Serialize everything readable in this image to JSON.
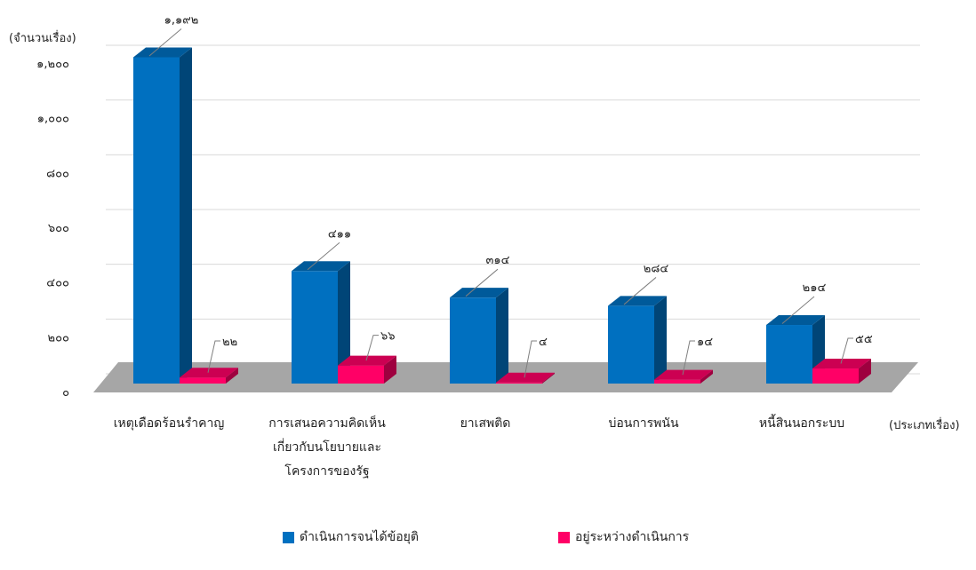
{
  "chart_data": {
    "type": "bar",
    "ylabel": "(จำนวนเรื่อง)",
    "xlabel": "(ประเภทเรื่อง)",
    "ylim": [
      0,
      1200
    ],
    "yticks": [
      "๐",
      "๒๐๐",
      "๔๐๐",
      "๖๐๐",
      "๘๐๐",
      "๑,๐๐๐",
      "๑,๒๐๐"
    ],
    "categories": [
      [
        "เหตุเดือดร้อนรำคาญ"
      ],
      [
        "การเสนอความคิดเห็น",
        "เกี่ยวกับนโยบายและ",
        "โครงการของรัฐ"
      ],
      [
        "ยาเสพติด"
      ],
      [
        "บ่อนการพนัน"
      ],
      [
        "หนี้สินนอกระบบ"
      ]
    ],
    "series": [
      {
        "name": "ดำเนินการจนได้ข้อยุติ",
        "values": [
          1192,
          411,
          314,
          284,
          214
        ],
        "labels": [
          "๑,๑๙๒",
          "๔๑๑",
          "๓๑๔",
          "๒๘๔",
          "๒๑๔"
        ],
        "color": "#0070c0"
      },
      {
        "name": "อยู่ระหว่างดำเนินการ",
        "values": [
          22,
          66,
          4,
          14,
          55
        ],
        "labels": [
          "๒๒",
          "๖๖",
          "๔",
          "๑๔",
          "๕๕"
        ],
        "color": "#ff0066"
      }
    ],
    "grid": true,
    "legend_position": "bottom"
  }
}
